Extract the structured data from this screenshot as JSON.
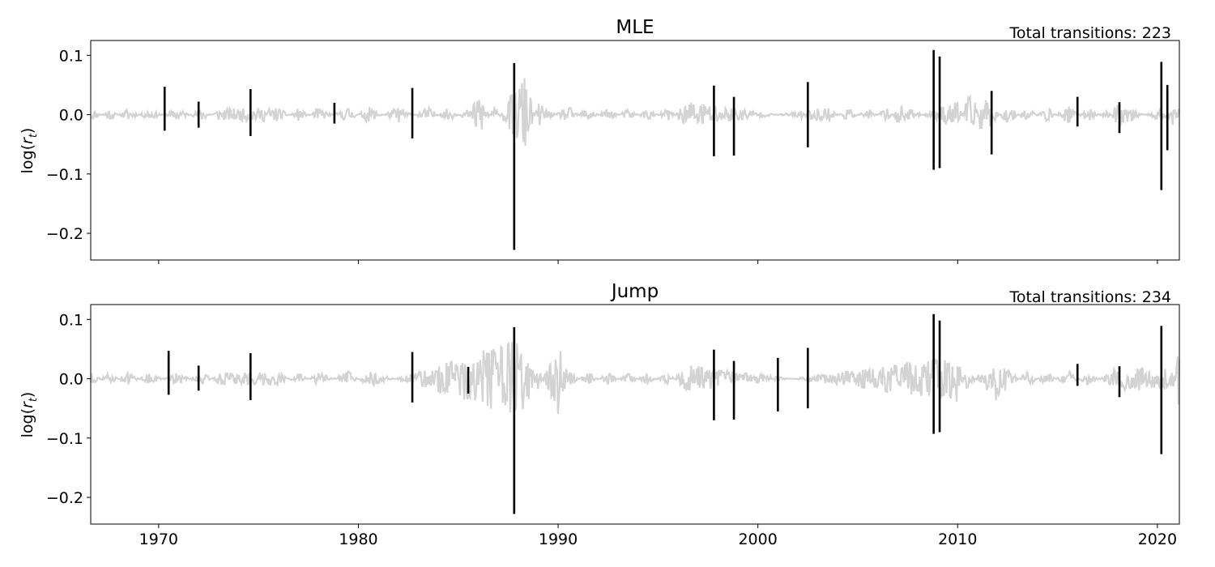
{
  "chart_data": [
    {
      "type": "line",
      "title": "MLE",
      "annotation": "Total transitions: 223",
      "ylabel": "log(r_t)",
      "ylabel_base": "log(",
      "ylabel_var": "r",
      "ylabel_sub": "t",
      "ylabel_close": ")",
      "xlim": [
        1966.6,
        2021.1
      ],
      "ylim": [
        -0.245,
        0.125
      ],
      "yticks": [
        0.1,
        0.0,
        -0.1,
        -0.2
      ],
      "ytick_labels": [
        "0.1",
        "0.0",
        "−0.1",
        "−0.2"
      ],
      "xticks": [
        1970,
        1980,
        1990,
        2000,
        2010,
        2020
      ],
      "xtick_labels": [
        "",
        "",
        "",
        "",
        "",
        ""
      ],
      "grid": false,
      "colors": {
        "low_volatility": "#d3d3d3",
        "high_volatility": "#000000"
      },
      "series": [
        {
          "values_note_key": "low",
          "points": [
            [
              1966.6,
              0.012
            ],
            [
              1967.5,
              -0.01
            ],
            [
              1968.5,
              0.011
            ],
            [
              1969.5,
              -0.01
            ],
            [
              1971.0,
              0.011
            ],
            [
              1972.2,
              -0.012
            ],
            [
              1973.0,
              0.01
            ],
            [
              1976.0,
              0.012
            ],
            [
              1977.0,
              -0.011
            ],
            [
              1978.0,
              0.012
            ],
            [
              1979.5,
              -0.013
            ],
            [
              1980.5,
              0.014
            ],
            [
              1982.0,
              -0.014
            ],
            [
              1983.5,
              0.013
            ],
            [
              1984.5,
              -0.012
            ],
            [
              1985.5,
              0.011
            ],
            [
              1986.0,
              -0.048
            ],
            [
              1986.8,
              0.014
            ],
            [
              1988.3,
              -0.07
            ],
            [
              1989.0,
              0.02
            ],
            [
              1990.5,
              -0.015
            ],
            [
              1991.5,
              0.013
            ],
            [
              1992.5,
              -0.011
            ],
            [
              1993.5,
              0.01
            ],
            [
              1994.5,
              -0.01
            ],
            [
              1995.5,
              0.012
            ],
            [
              1996.5,
              -0.025
            ],
            [
              2003.5,
              0.014
            ],
            [
              2004.5,
              -0.011
            ],
            [
              2005.5,
              0.01
            ],
            [
              2006.5,
              -0.012
            ],
            [
              2007.0,
              0.018
            ],
            [
              2010.0,
              -0.025
            ],
            [
              2010.5,
              0.03
            ],
            [
              2011.5,
              0.028
            ],
            [
              2012.5,
              -0.018
            ],
            [
              2013.5,
              0.014
            ],
            [
              2014.5,
              -0.013
            ],
            [
              2015.5,
              0.016
            ],
            [
              2016.5,
              -0.012
            ],
            [
              2017.5,
              0.009
            ],
            [
              2018.0,
              -0.02
            ],
            [
              2020.8,
              0.02
            ],
            [
              2021.1,
              -0.015
            ]
          ]
        },
        {
          "values_note_key": "high",
          "spikes": [
            [
              1970.3,
              0.047,
              -0.027
            ],
            [
              1972.0,
              0.022,
              -0.022
            ],
            [
              1974.6,
              0.043,
              -0.036
            ],
            [
              1978.8,
              0.02,
              -0.015
            ],
            [
              1982.7,
              0.045,
              -0.04
            ],
            [
              1987.8,
              0.087,
              -0.228
            ],
            [
              1997.8,
              0.049,
              -0.07
            ],
            [
              1998.8,
              0.03,
              -0.069
            ],
            [
              2002.5,
              0.055,
              -0.055
            ],
            [
              2008.8,
              0.109,
              -0.093
            ],
            [
              2009.1,
              0.098,
              -0.09
            ],
            [
              2011.7,
              0.04,
              -0.067
            ],
            [
              2016.0,
              0.03,
              -0.02
            ],
            [
              2018.1,
              0.021,
              -0.031
            ],
            [
              2020.2,
              0.089,
              -0.127
            ],
            [
              2020.5,
              0.05,
              -0.06
            ]
          ]
        }
      ]
    },
    {
      "type": "line",
      "title": "Jump",
      "annotation": "Total transitions: 234",
      "ylabel": "log(r_t)",
      "ylabel_base": "log(",
      "ylabel_var": "r",
      "ylabel_sub": "t",
      "ylabel_close": ")",
      "xlim": [
        1966.6,
        2021.1
      ],
      "ylim": [
        -0.245,
        0.125
      ],
      "yticks": [
        0.1,
        0.0,
        -0.1,
        -0.2
      ],
      "ytick_labels": [
        "0.1",
        "0.0",
        "−0.1",
        "−0.2"
      ],
      "xticks": [
        1970,
        1980,
        1990,
        2000,
        2010,
        2020
      ],
      "xtick_labels": [
        "1970",
        "1980",
        "1990",
        "2000",
        "2010",
        "2020"
      ],
      "grid": false,
      "colors": {
        "low_volatility": "#d3d3d3",
        "high_volatility": "#000000"
      },
      "series": [
        {
          "values_note_key": "low",
          "points": [
            [
              1966.6,
              0.012
            ],
            [
              1967.5,
              -0.01
            ],
            [
              1968.5,
              0.011
            ],
            [
              1969.5,
              -0.01
            ],
            [
              1971.0,
              0.011
            ],
            [
              1972.2,
              -0.012
            ],
            [
              1973.0,
              0.01
            ],
            [
              1976.0,
              0.012
            ],
            [
              1977.0,
              -0.011
            ],
            [
              1978.0,
              0.012
            ],
            [
              1979.5,
              -0.013
            ],
            [
              1980.5,
              0.014
            ],
            [
              1988.3,
              -0.07
            ],
            [
              1989.0,
              0.02
            ],
            [
              1990.0,
              -0.062
            ],
            [
              1990.5,
              -0.015
            ],
            [
              1991.5,
              0.013
            ],
            [
              1992.5,
              -0.011
            ],
            [
              1993.5,
              0.01
            ],
            [
              1994.5,
              -0.01
            ],
            [
              1995.5,
              0.012
            ],
            [
              1996.5,
              -0.025
            ],
            [
              2010.0,
              0.04
            ],
            [
              2010.5,
              -0.025
            ],
            [
              2011.5,
              0.035
            ],
            [
              2011.8,
              -0.048
            ],
            [
              2012.5,
              -0.018
            ],
            [
              2013.5,
              0.014
            ],
            [
              2014.5,
              -0.013
            ],
            [
              2015.5,
              0.016
            ],
            [
              2016.5,
              -0.012
            ],
            [
              2017.5,
              0.009
            ],
            [
              2018.0,
              0.02
            ],
            [
              2020.8,
              0.02
            ],
            [
              2021.1,
              -0.06
            ]
          ]
        },
        {
          "values_note_key": "high",
          "spikes": [
            [
              1970.5,
              0.047,
              -0.027
            ],
            [
              1972.0,
              0.022,
              -0.02
            ],
            [
              1974.6,
              0.043,
              -0.036
            ],
            [
              1982.7,
              0.045,
              -0.04
            ],
            [
              1985.5,
              0.02,
              -0.025
            ],
            [
              1987.8,
              0.087,
              -0.228
            ],
            [
              1997.8,
              0.049,
              -0.07
            ],
            [
              1998.8,
              0.03,
              -0.069
            ],
            [
              2001.0,
              0.035,
              -0.055
            ],
            [
              2002.5,
              0.052,
              -0.05
            ],
            [
              2008.8,
              0.109,
              -0.093
            ],
            [
              2009.1,
              0.098,
              -0.09
            ],
            [
              2016.0,
              0.025,
              -0.012
            ],
            [
              2018.1,
              0.021,
              -0.031
            ],
            [
              2020.2,
              0.089,
              -0.127
            ]
          ]
        }
      ]
    }
  ]
}
